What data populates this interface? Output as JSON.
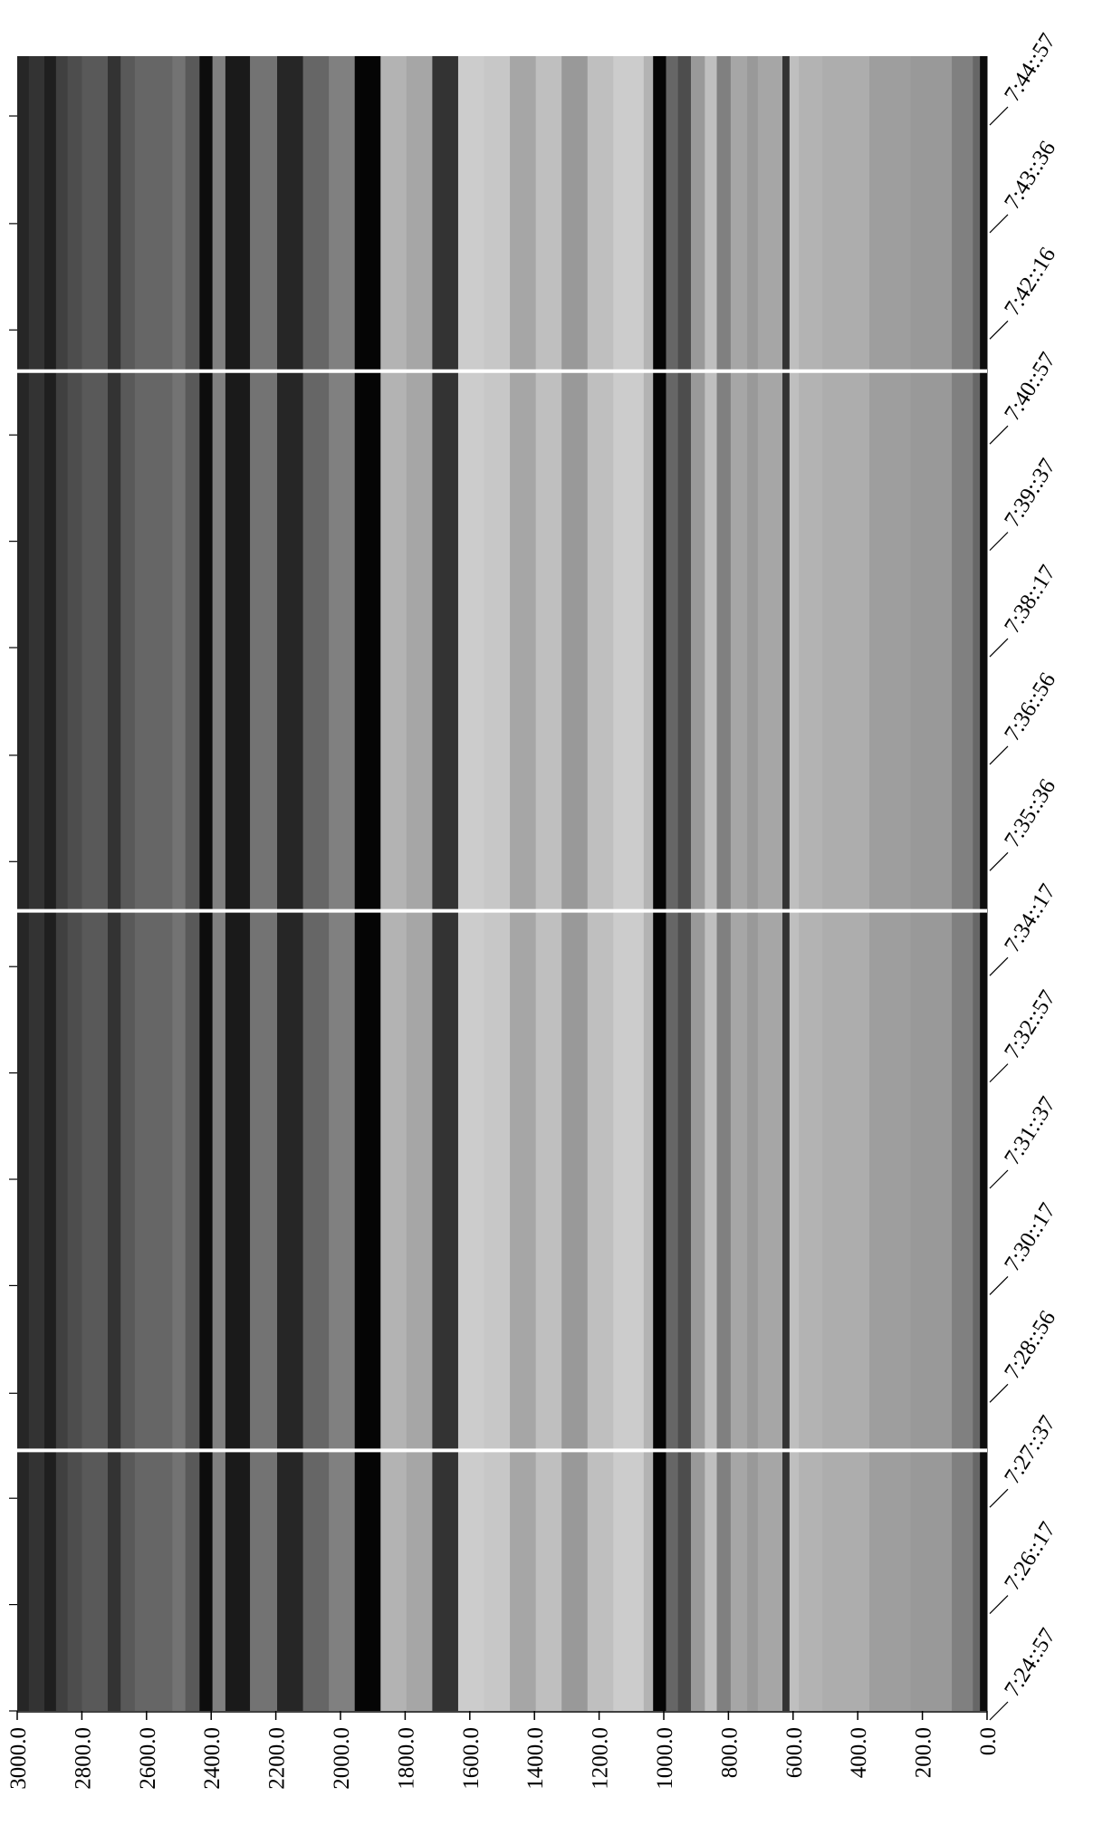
{
  "chart_data": {
    "type": "heatmap",
    "x_edges": [
      3000,
      2964,
      2916,
      2880,
      2844,
      2800,
      2720,
      2680,
      2636,
      2520,
      2480,
      2436,
      2396,
      2356,
      2280,
      2196,
      2116,
      2036,
      1956,
      1876,
      1796,
      1716,
      1636,
      1556,
      1476,
      1396,
      1316,
      1236,
      1156,
      1062,
      1033,
      993,
      956,
      916,
      873,
      836,
      793,
      742,
      709,
      633,
      611,
      582,
      509,
      364,
      236,
      109,
      44,
      22,
      0
    ],
    "values": [
      0.15,
      0.2,
      0.12,
      0.25,
      0.3,
      0.35,
      0.2,
      0.35,
      0.4,
      0.45,
      0.35,
      0.05,
      0.5,
      0.1,
      0.45,
      0.15,
      0.4,
      0.5,
      0.02,
      0.7,
      0.65,
      0.2,
      0.8,
      0.78,
      0.65,
      0.75,
      0.6,
      0.75,
      0.8,
      0.7,
      0.02,
      0.4,
      0.3,
      0.6,
      0.75,
      0.5,
      0.65,
      0.6,
      0.65,
      0.2,
      0.75,
      0.7,
      0.68,
      0.62,
      0.6,
      0.5,
      0.4,
      0.05
    ],
    "separators": [
      196,
      602,
      1008
    ],
    "xlim": [
      3000,
      0
    ],
    "xticks": [
      {
        "value": 3000,
        "label": "3000.0"
      },
      {
        "value": 2800,
        "label": "2800.0"
      },
      {
        "value": 2600,
        "label": "2600.0"
      },
      {
        "value": 2400,
        "label": "2400.0"
      },
      {
        "value": 2200,
        "label": "2200.0"
      },
      {
        "value": 2000,
        "label": "2000.0"
      },
      {
        "value": 1800,
        "label": "1800.0"
      },
      {
        "value": 1600,
        "label": "1600.0"
      },
      {
        "value": 1400,
        "label": "1400.0"
      },
      {
        "value": 1200,
        "label": "1200.0"
      },
      {
        "value": 1000,
        "label": "1000.0"
      },
      {
        "value": 800,
        "label": "800.0"
      },
      {
        "value": 600,
        "label": "600.0"
      },
      {
        "value": 400,
        "label": "400.0"
      },
      {
        "value": 200,
        "label": "200.0"
      },
      {
        "value": 0,
        "label": "0.0"
      }
    ],
    "ylim": [
      0,
      1245
    ],
    "yticks": [
      {
        "value": 0,
        "label": "7:24::57"
      },
      {
        "value": 80,
        "label": "7:26::17"
      },
      {
        "value": 160,
        "label": "7:27::37"
      },
      {
        "value": 239,
        "label": "7:28::56"
      },
      {
        "value": 320,
        "label": "7:30::17"
      },
      {
        "value": 400,
        "label": "7:31::37"
      },
      {
        "value": 480,
        "label": "7:32::57"
      },
      {
        "value": 560,
        "label": "7:34::17"
      },
      {
        "value": 639,
        "label": "7:35::36"
      },
      {
        "value": 719,
        "label": "7:36::56"
      },
      {
        "value": 800,
        "label": "7:38::17"
      },
      {
        "value": 880,
        "label": "7:39::37"
      },
      {
        "value": 960,
        "label": "7:40::57"
      },
      {
        "value": 1039,
        "label": "7:42::16"
      },
      {
        "value": 1119,
        "label": "7:43::36"
      },
      {
        "value": 1200,
        "label": "7:44::57"
      }
    ],
    "separator_color": "#ffffff"
  }
}
